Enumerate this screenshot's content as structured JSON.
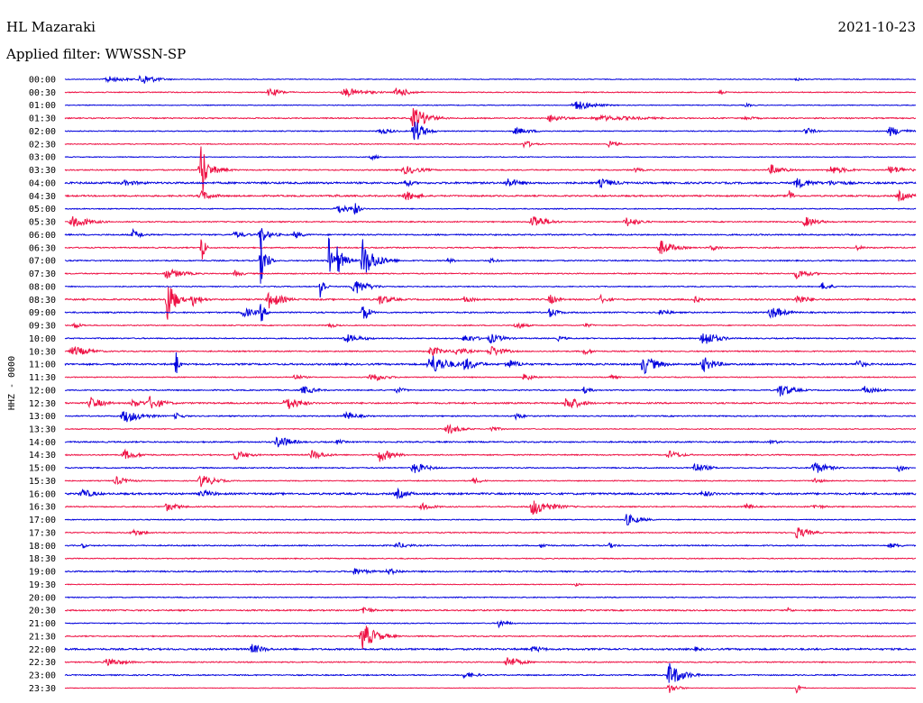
{
  "header": {
    "station": "HL Mazaraki",
    "date": "2021-10-23",
    "filter": "Applied filter: WWSSN-SP"
  },
  "chart_data": {
    "type": "line",
    "title": "HL Mazaraki",
    "subtitle": "Applied filter: WWSSN-SP",
    "date": "2021-10-23",
    "ylabel": "HHZ - 0000",
    "xlabel": "",
    "grid": false,
    "legend": "none",
    "colors": {
      "even": "#0000dd",
      "odd": "#ee1144"
    },
    "rows": [
      "00:00",
      "00:30",
      "01:00",
      "01:30",
      "02:00",
      "02:30",
      "03:00",
      "03:30",
      "04:00",
      "04:30",
      "05:00",
      "05:30",
      "06:00",
      "06:30",
      "07:00",
      "07:30",
      "08:00",
      "08:30",
      "09:00",
      "09:30",
      "10:00",
      "10:30",
      "11:00",
      "11:30",
      "12:00",
      "12:30",
      "13:00",
      "13:30",
      "14:00",
      "14:30",
      "15:00",
      "15:30",
      "16:00",
      "16:30",
      "17:00",
      "17:30",
      "18:00",
      "18:30",
      "19:00",
      "19:30",
      "20:00",
      "20:30",
      "21:00",
      "21:30",
      "22:00",
      "22:30",
      "23:00",
      "23:30"
    ],
    "series": [
      {
        "row": "00:00",
        "noise": 0.4,
        "events": [
          [
            0.05,
            4,
            0.02
          ],
          [
            0.09,
            7,
            0.015
          ],
          [
            0.86,
            2,
            0.01
          ]
        ]
      },
      {
        "row": "00:30",
        "noise": 0.5,
        "events": [
          [
            0.24,
            5,
            0.015
          ],
          [
            0.33,
            5,
            0.025
          ],
          [
            0.39,
            6,
            0.015
          ],
          [
            0.77,
            4,
            0.005
          ]
        ]
      },
      {
        "row": "01:00",
        "noise": 0.4,
        "events": [
          [
            0.6,
            6,
            0.02
          ],
          [
            0.8,
            2,
            0.01
          ]
        ]
      },
      {
        "row": "01:30",
        "noise": 0.6,
        "events": [
          [
            0.41,
            14,
            0.015
          ],
          [
            0.57,
            5,
            0.015
          ],
          [
            0.63,
            3,
            0.06
          ],
          [
            0.8,
            2,
            0.02
          ]
        ]
      },
      {
        "row": "02:00",
        "noise": 0.5,
        "events": [
          [
            0.37,
            4,
            0.015
          ],
          [
            0.41,
            16,
            0.01
          ],
          [
            0.53,
            4,
            0.02
          ],
          [
            0.87,
            5,
            0.01
          ],
          [
            0.97,
            6,
            0.015
          ]
        ]
      },
      {
        "row": "02:30",
        "noise": 0.5,
        "events": [
          [
            0.54,
            5,
            0.01
          ],
          [
            0.64,
            4,
            0.01
          ]
        ]
      },
      {
        "row": "03:00",
        "noise": 0.4,
        "events": [
          [
            0.36,
            3,
            0.01
          ]
        ]
      },
      {
        "row": "03:30",
        "noise": 0.6,
        "events": [
          [
            0.16,
            55,
            0.004
          ],
          [
            0.16,
            12,
            0.015
          ],
          [
            0.4,
            5,
            0.02
          ],
          [
            0.67,
            3,
            0.01
          ],
          [
            0.83,
            6,
            0.015
          ],
          [
            0.9,
            5,
            0.02
          ],
          [
            0.97,
            5,
            0.02
          ]
        ]
      },
      {
        "row": "04:00",
        "noise": 1.0,
        "events": [
          [
            0.07,
            3,
            0.03
          ],
          [
            0.4,
            5,
            0.01
          ],
          [
            0.52,
            6,
            0.015
          ],
          [
            0.63,
            5,
            0.02
          ],
          [
            0.86,
            6,
            0.02
          ],
          [
            0.9,
            3,
            0.03
          ]
        ]
      },
      {
        "row": "04:30",
        "noise": 0.8,
        "events": [
          [
            0.16,
            6,
            0.015
          ],
          [
            0.32,
            2,
            0.01
          ],
          [
            0.4,
            6,
            0.015
          ],
          [
            0.85,
            10,
            0.005
          ],
          [
            0.98,
            6,
            0.015
          ]
        ]
      },
      {
        "row": "05:00",
        "noise": 0.5,
        "events": [
          [
            0.32,
            6,
            0.015
          ],
          [
            0.34,
            10,
            0.005
          ]
        ]
      },
      {
        "row": "05:30",
        "noise": 0.6,
        "events": [
          [
            0.01,
            7,
            0.02
          ],
          [
            0.55,
            9,
            0.015
          ],
          [
            0.66,
            6,
            0.015
          ],
          [
            0.87,
            6,
            0.015
          ]
        ]
      },
      {
        "row": "06:00",
        "noise": 0.7,
        "events": [
          [
            0.08,
            6,
            0.01
          ],
          [
            0.2,
            4,
            0.015
          ],
          [
            0.23,
            6,
            0.015
          ],
          [
            0.23,
            20,
            0.004
          ],
          [
            0.27,
            5,
            0.01
          ]
        ]
      },
      {
        "row": "06:30",
        "noise": 0.6,
        "events": [
          [
            0.16,
            30,
            0.003
          ],
          [
            0.7,
            9,
            0.015
          ],
          [
            0.76,
            4,
            0.01
          ],
          [
            0.93,
            3,
            0.01
          ]
        ]
      },
      {
        "row": "07:00",
        "noise": 0.6,
        "events": [
          [
            0.23,
            28,
            0.006
          ],
          [
            0.31,
            30,
            0.004
          ],
          [
            0.32,
            18,
            0.008
          ],
          [
            0.35,
            28,
            0.004
          ],
          [
            0.35,
            20,
            0.015
          ],
          [
            0.45,
            3,
            0.01
          ],
          [
            0.5,
            3,
            0.01
          ]
        ]
      },
      {
        "row": "07:30",
        "noise": 0.6,
        "events": [
          [
            0.12,
            6,
            0.02
          ],
          [
            0.2,
            4,
            0.01
          ],
          [
            0.86,
            6,
            0.015
          ]
        ]
      },
      {
        "row": "08:00",
        "noise": 0.5,
        "events": [
          [
            0.3,
            20,
            0.004
          ],
          [
            0.34,
            10,
            0.015
          ],
          [
            0.89,
            5,
            0.01
          ]
        ]
      },
      {
        "row": "08:30",
        "noise": 0.8,
        "events": [
          [
            0.12,
            30,
            0.008
          ],
          [
            0.15,
            8,
            0.01
          ],
          [
            0.24,
            10,
            0.015
          ],
          [
            0.37,
            6,
            0.015
          ],
          [
            0.47,
            5,
            0.01
          ],
          [
            0.57,
            6,
            0.01
          ],
          [
            0.63,
            5,
            0.01
          ],
          [
            0.74,
            4,
            0.01
          ],
          [
            0.86,
            6,
            0.015
          ]
        ]
      },
      {
        "row": "09:00",
        "noise": 0.7,
        "events": [
          [
            0.21,
            6,
            0.015
          ],
          [
            0.23,
            16,
            0.004
          ],
          [
            0.35,
            14,
            0.006
          ],
          [
            0.57,
            6,
            0.01
          ],
          [
            0.7,
            5,
            0.01
          ],
          [
            0.83,
            8,
            0.015
          ]
        ]
      },
      {
        "row": "09:30",
        "noise": 0.5,
        "events": [
          [
            0.01,
            4,
            0.01
          ],
          [
            0.31,
            3,
            0.01
          ],
          [
            0.53,
            5,
            0.01
          ],
          [
            0.61,
            3,
            0.01
          ]
        ]
      },
      {
        "row": "10:00",
        "noise": 0.6,
        "events": [
          [
            0.33,
            5,
            0.02
          ],
          [
            0.47,
            5,
            0.015
          ],
          [
            0.5,
            6,
            0.015
          ],
          [
            0.58,
            3,
            0.01
          ],
          [
            0.75,
            10,
            0.015
          ]
        ]
      },
      {
        "row": "10:30",
        "noise": 0.6,
        "events": [
          [
            0.01,
            6,
            0.02
          ],
          [
            0.43,
            6,
            0.015
          ],
          [
            0.46,
            5,
            0.015
          ],
          [
            0.5,
            7,
            0.015
          ],
          [
            0.61,
            4,
            0.01
          ]
        ]
      },
      {
        "row": "11:00",
        "noise": 0.9,
        "events": [
          [
            0.13,
            20,
            0.003
          ],
          [
            0.43,
            12,
            0.02
          ],
          [
            0.47,
            8,
            0.015
          ],
          [
            0.52,
            6,
            0.015
          ],
          [
            0.68,
            12,
            0.015
          ],
          [
            0.75,
            9,
            0.015
          ],
          [
            0.93,
            6,
            0.01
          ]
        ]
      },
      {
        "row": "11:30",
        "noise": 0.5,
        "events": [
          [
            0.27,
            4,
            0.01
          ],
          [
            0.36,
            6,
            0.015
          ],
          [
            0.54,
            5,
            0.01
          ],
          [
            0.64,
            3,
            0.01
          ]
        ]
      },
      {
        "row": "12:00",
        "noise": 0.6,
        "events": [
          [
            0.28,
            5,
            0.015
          ],
          [
            0.39,
            4,
            0.01
          ],
          [
            0.61,
            4,
            0.01
          ],
          [
            0.84,
            8,
            0.015
          ],
          [
            0.94,
            5,
            0.015
          ]
        ]
      },
      {
        "row": "12:30",
        "noise": 0.8,
        "events": [
          [
            0.03,
            7,
            0.015
          ],
          [
            0.08,
            5,
            0.015
          ],
          [
            0.1,
            8,
            0.015
          ],
          [
            0.26,
            9,
            0.015
          ],
          [
            0.59,
            9,
            0.015
          ]
        ]
      },
      {
        "row": "13:00",
        "noise": 0.6,
        "events": [
          [
            0.07,
            8,
            0.02
          ],
          [
            0.13,
            4,
            0.01
          ],
          [
            0.33,
            5,
            0.015
          ],
          [
            0.53,
            4,
            0.01
          ]
        ]
      },
      {
        "row": "13:30",
        "noise": 0.5,
        "events": [
          [
            0.45,
            6,
            0.015
          ],
          [
            0.5,
            4,
            0.01
          ]
        ]
      },
      {
        "row": "14:00",
        "noise": 0.7,
        "events": [
          [
            0.25,
            8,
            0.015
          ],
          [
            0.32,
            3,
            0.01
          ],
          [
            0.83,
            3,
            0.01
          ]
        ]
      },
      {
        "row": "14:30",
        "noise": 0.6,
        "events": [
          [
            0.07,
            6,
            0.015
          ],
          [
            0.2,
            6,
            0.015
          ],
          [
            0.29,
            6,
            0.015
          ],
          [
            0.37,
            8,
            0.015
          ],
          [
            0.71,
            5,
            0.015
          ]
        ]
      },
      {
        "row": "15:00",
        "noise": 0.6,
        "events": [
          [
            0.41,
            7,
            0.015
          ],
          [
            0.74,
            6,
            0.015
          ],
          [
            0.88,
            8,
            0.015
          ],
          [
            0.98,
            5,
            0.01
          ]
        ]
      },
      {
        "row": "15:30",
        "noise": 0.5,
        "events": [
          [
            0.06,
            5,
            0.015
          ],
          [
            0.16,
            8,
            0.015
          ],
          [
            0.48,
            4,
            0.01
          ],
          [
            0.88,
            4,
            0.01
          ]
        ]
      },
      {
        "row": "16:00",
        "noise": 1.0,
        "events": [
          [
            0.02,
            6,
            0.015
          ],
          [
            0.16,
            5,
            0.015
          ],
          [
            0.39,
            6,
            0.015
          ],
          [
            0.75,
            4,
            0.015
          ]
        ]
      },
      {
        "row": "16:30",
        "noise": 0.6,
        "events": [
          [
            0.12,
            5,
            0.015
          ],
          [
            0.42,
            4,
            0.015
          ],
          [
            0.55,
            10,
            0.02
          ],
          [
            0.8,
            4,
            0.01
          ],
          [
            0.88,
            3,
            0.015
          ]
        ]
      },
      {
        "row": "17:00",
        "noise": 0.5,
        "events": [
          [
            0.66,
            7,
            0.015
          ]
        ]
      },
      {
        "row": "17:30",
        "noise": 0.6,
        "events": [
          [
            0.08,
            4,
            0.015
          ],
          [
            0.86,
            7,
            0.015
          ]
        ]
      },
      {
        "row": "18:00",
        "noise": 0.6,
        "events": [
          [
            0.02,
            4,
            0.005
          ],
          [
            0.39,
            4,
            0.015
          ],
          [
            0.56,
            3,
            0.01
          ],
          [
            0.64,
            3,
            0.01
          ],
          [
            0.97,
            3,
            0.015
          ]
        ]
      },
      {
        "row": "18:30",
        "noise": 0.5,
        "events": []
      },
      {
        "row": "19:00",
        "noise": 0.7,
        "events": [
          [
            0.34,
            4,
            0.02
          ],
          [
            0.38,
            4,
            0.015
          ]
        ]
      },
      {
        "row": "19:30",
        "noise": 0.4,
        "events": [
          [
            0.6,
            3,
            0.005
          ]
        ]
      },
      {
        "row": "20:00",
        "noise": 0.5,
        "events": []
      },
      {
        "row": "20:30",
        "noise": 0.7,
        "events": [
          [
            0.35,
            6,
            0.01
          ],
          [
            0.85,
            4,
            0.005
          ]
        ]
      },
      {
        "row": "21:00",
        "noise": 0.5,
        "events": [
          [
            0.51,
            5,
            0.01
          ]
        ]
      },
      {
        "row": "21:30",
        "noise": 0.6,
        "events": [
          [
            0.35,
            16,
            0.015
          ]
        ]
      },
      {
        "row": "22:00",
        "noise": 0.9,
        "events": [
          [
            0.22,
            6,
            0.015
          ],
          [
            0.55,
            4,
            0.015
          ],
          [
            0.74,
            3,
            0.01
          ]
        ]
      },
      {
        "row": "22:30",
        "noise": 0.6,
        "events": [
          [
            0.05,
            5,
            0.02
          ],
          [
            0.52,
            7,
            0.015
          ]
        ]
      },
      {
        "row": "23:00",
        "noise": 0.6,
        "events": [
          [
            0.47,
            4,
            0.015
          ],
          [
            0.71,
            14,
            0.015
          ]
        ]
      },
      {
        "row": "23:30",
        "noise": 0.3,
        "events": [
          [
            0.71,
            6,
            0.01
          ],
          [
            0.86,
            6,
            0.005
          ]
        ]
      }
    ]
  }
}
